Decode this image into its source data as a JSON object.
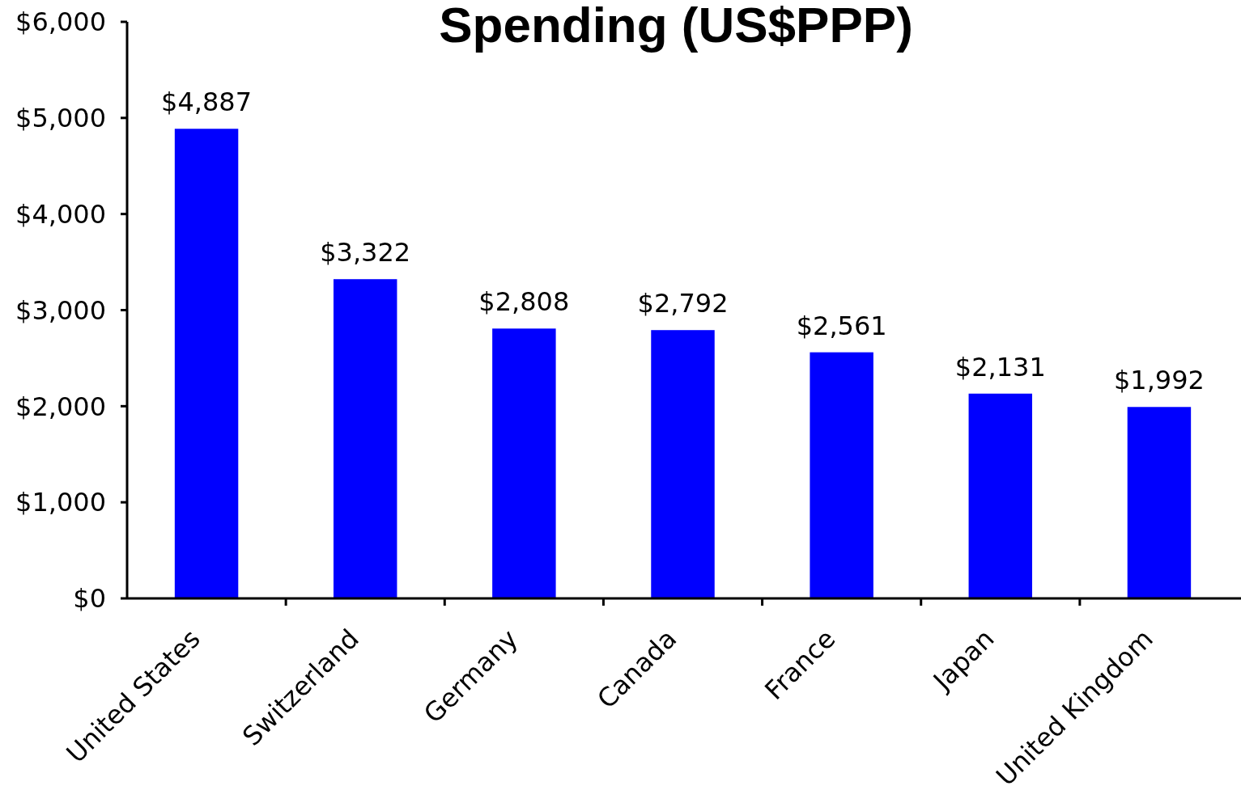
{
  "chart_data": {
    "type": "bar",
    "title": "Spending (US$PPP)",
    "categories": [
      "United States",
      "Switzerland",
      "Germany",
      "Canada",
      "France",
      "Japan",
      "United Kingdom"
    ],
    "values": [
      4887,
      3322,
      2808,
      2792,
      2561,
      2131,
      1992
    ],
    "value_labels": [
      "$4,887",
      "$3,322",
      "$2,808",
      "$2,792",
      "$2,561",
      "$2,131",
      "$1,992"
    ],
    "color": "#0000ff",
    "ylim": [
      0,
      6000
    ],
    "yticks": [
      {
        "value": 0,
        "label": "$0"
      },
      {
        "value": 1000,
        "label": "$1,000"
      },
      {
        "value": 2000,
        "label": "$2,000"
      },
      {
        "value": 3000,
        "label": "$3,000"
      },
      {
        "value": 4000,
        "label": "$4,000"
      },
      {
        "value": 5000,
        "label": "$5,000"
      },
      {
        "value": 6000,
        "label": "$6,000"
      }
    ],
    "grid": false
  }
}
